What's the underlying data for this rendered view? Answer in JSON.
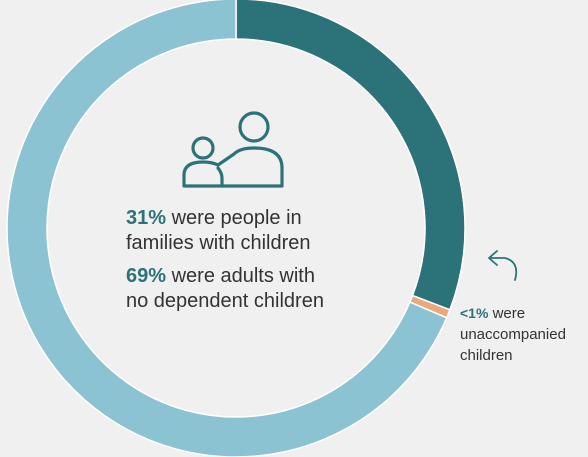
{
  "chart_data": {
    "type": "pie",
    "style": "donut",
    "categories": [
      "people in families with children",
      "unaccompanied children",
      "adults with no dependent children"
    ],
    "values": [
      31,
      0.6,
      69
    ],
    "colors": [
      "#2c7279",
      "#e9a97b",
      "#8cc3d3"
    ],
    "start_position": "top",
    "direction": "clockwise",
    "annotations": [
      {
        "value_text": "31%",
        "text": "were people in families with children"
      },
      {
        "value_text": "69%",
        "text": "were adults with no dependent children"
      },
      {
        "value_text": "<1%",
        "text": "were unaccompanied children"
      }
    ]
  },
  "center_text": {
    "families_pct": "31%",
    "families_line1": " were people in",
    "families_line2": "families with children",
    "adults_pct": "69%",
    "adults_line1": " were adults with",
    "adults_line2": "no dependent children"
  },
  "side_note": {
    "pct": "<1%",
    "line1": " were",
    "line2": "unaccompanied",
    "line3": "children"
  },
  "icons": {
    "center": "family-icon",
    "pointer": "curved-arrow-icon"
  },
  "colors": {
    "background": "#f0f0f0",
    "accent": "#2c7279",
    "light": "#8cc3d3",
    "highlight": "#e9a97b",
    "text": "#333333"
  }
}
